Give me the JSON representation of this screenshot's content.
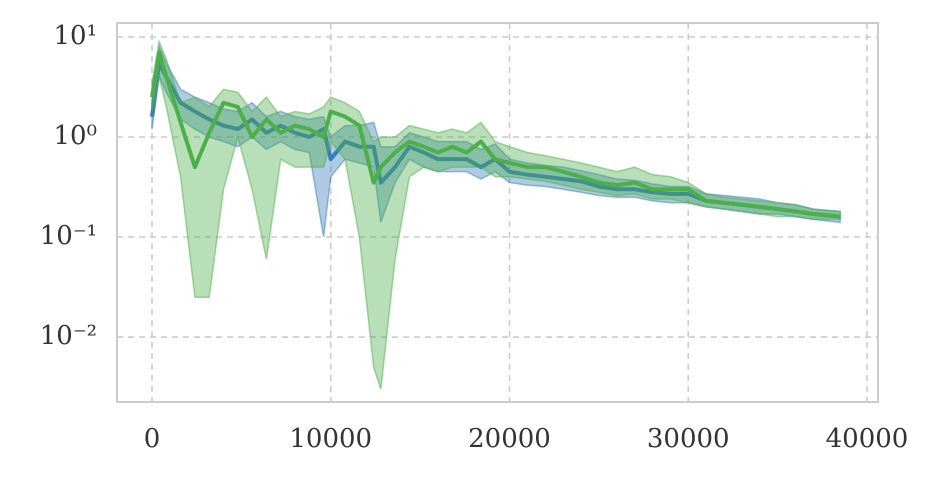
{
  "chart_data": {
    "type": "line",
    "log_y": true,
    "grid": true,
    "x": [
      0,
      400,
      800,
      1600,
      2400,
      3200,
      4000,
      4800,
      5600,
      6400,
      7200,
      8000,
      8800,
      9600,
      10000,
      10800,
      11600,
      12400,
      12800,
      13600,
      14400,
      15200,
      16000,
      16800,
      17600,
      18400,
      19200,
      20000,
      21000,
      22000,
      23000,
      24000,
      25000,
      26000,
      27000,
      28000,
      29000,
      30000,
      31000,
      32000,
      33000,
      34000,
      35000,
      36000,
      37000,
      38500
    ],
    "series": [
      {
        "color": "#377eb8",
        "values": [
          1.6,
          5.5,
          4,
          2.2,
          1.8,
          1.5,
          1.3,
          1.2,
          1.5,
          1.1,
          1.3,
          1.1,
          1.0,
          1.2,
          0.6,
          0.9,
          0.8,
          0.8,
          0.35,
          0.5,
          0.8,
          0.7,
          0.6,
          0.6,
          0.6,
          0.5,
          0.6,
          0.45,
          0.42,
          0.4,
          0.38,
          0.36,
          0.32,
          0.3,
          0.3,
          0.28,
          0.27,
          0.27,
          0.23,
          0.22,
          0.21,
          0.2,
          0.19,
          0.18,
          0.17,
          0.16
        ],
        "lower": [
          1.2,
          4,
          2.8,
          1.5,
          1.2,
          1.0,
          0.9,
          0.8,
          1.0,
          0.75,
          0.9,
          0.75,
          0.7,
          0.1,
          0.4,
          0.6,
          0.55,
          0.5,
          0.14,
          0.35,
          0.6,
          0.5,
          0.45,
          0.45,
          0.45,
          0.38,
          0.45,
          0.35,
          0.33,
          0.32,
          0.3,
          0.28,
          0.26,
          0.25,
          0.25,
          0.23,
          0.22,
          0.22,
          0.2,
          0.19,
          0.18,
          0.17,
          0.17,
          0.16,
          0.15,
          0.14
        ],
        "upper": [
          2.2,
          8,
          5.5,
          3,
          2.5,
          2.2,
          1.9,
          1.8,
          2.2,
          1.6,
          1.8,
          1.6,
          1.5,
          1.6,
          1.0,
          1.3,
          1.3,
          1.4,
          0.8,
          0.8,
          1.1,
          1.0,
          0.9,
          0.9,
          0.9,
          0.75,
          0.85,
          0.6,
          0.55,
          0.52,
          0.5,
          0.46,
          0.42,
          0.38,
          0.37,
          0.34,
          0.32,
          0.32,
          0.27,
          0.26,
          0.25,
          0.24,
          0.22,
          0.21,
          0.19,
          0.18
        ]
      },
      {
        "color": "#4daf4a",
        "values": [
          2.5,
          7,
          4,
          1.4,
          0.5,
          1.1,
          2.2,
          2.0,
          1.0,
          1.5,
          1.1,
          1.3,
          1.2,
          1.0,
          1.8,
          1.6,
          1.3,
          0.35,
          0.5,
          0.7,
          0.9,
          0.8,
          0.7,
          0.8,
          0.7,
          0.9,
          0.6,
          0.55,
          0.5,
          0.5,
          0.45,
          0.4,
          0.35,
          0.33,
          0.35,
          0.3,
          0.3,
          0.3,
          0.23,
          0.22,
          0.21,
          0.2,
          0.19,
          0.18,
          0.17,
          0.16
        ],
        "lower": [
          1.8,
          4,
          2,
          0.4,
          0.025,
          0.025,
          0.3,
          1.0,
          0.3,
          0.06,
          0.6,
          0.5,
          0.5,
          0.5,
          0.9,
          0.6,
          0.1,
          0.005,
          0.003,
          0.06,
          0.4,
          0.5,
          0.45,
          0.5,
          0.5,
          0.5,
          0.4,
          0.4,
          0.38,
          0.36,
          0.33,
          0.3,
          0.28,
          0.26,
          0.27,
          0.24,
          0.24,
          0.22,
          0.2,
          0.19,
          0.18,
          0.17,
          0.16,
          0.16,
          0.15,
          0.15
        ],
        "upper": [
          3.5,
          9,
          6,
          2.2,
          2.5,
          2.0,
          3.0,
          2.8,
          1.8,
          2.5,
          1.6,
          1.8,
          1.7,
          2.0,
          2.5,
          2.2,
          1.8,
          0.9,
          1.0,
          1.0,
          1.3,
          1.2,
          1.1,
          1.2,
          1.1,
          1.4,
          0.9,
          0.8,
          0.7,
          0.65,
          0.6,
          0.55,
          0.5,
          0.45,
          0.5,
          0.42,
          0.4,
          0.35,
          0.27,
          0.25,
          0.24,
          0.23,
          0.22,
          0.21,
          0.19,
          0.18
        ]
      }
    ],
    "xlim": [
      -1958,
      40615
    ],
    "xticks": [
      0,
      10000,
      20000,
      30000,
      40000
    ],
    "ylim": [
      0.00224,
      13.8
    ],
    "yticks": [
      {
        "value": 0.01,
        "label": "10⁻²"
      },
      {
        "value": 0.1,
        "label": "10⁻¹"
      },
      {
        "value": 1,
        "label": "10⁰"
      },
      {
        "value": 10,
        "label": "10¹"
      }
    ]
  }
}
